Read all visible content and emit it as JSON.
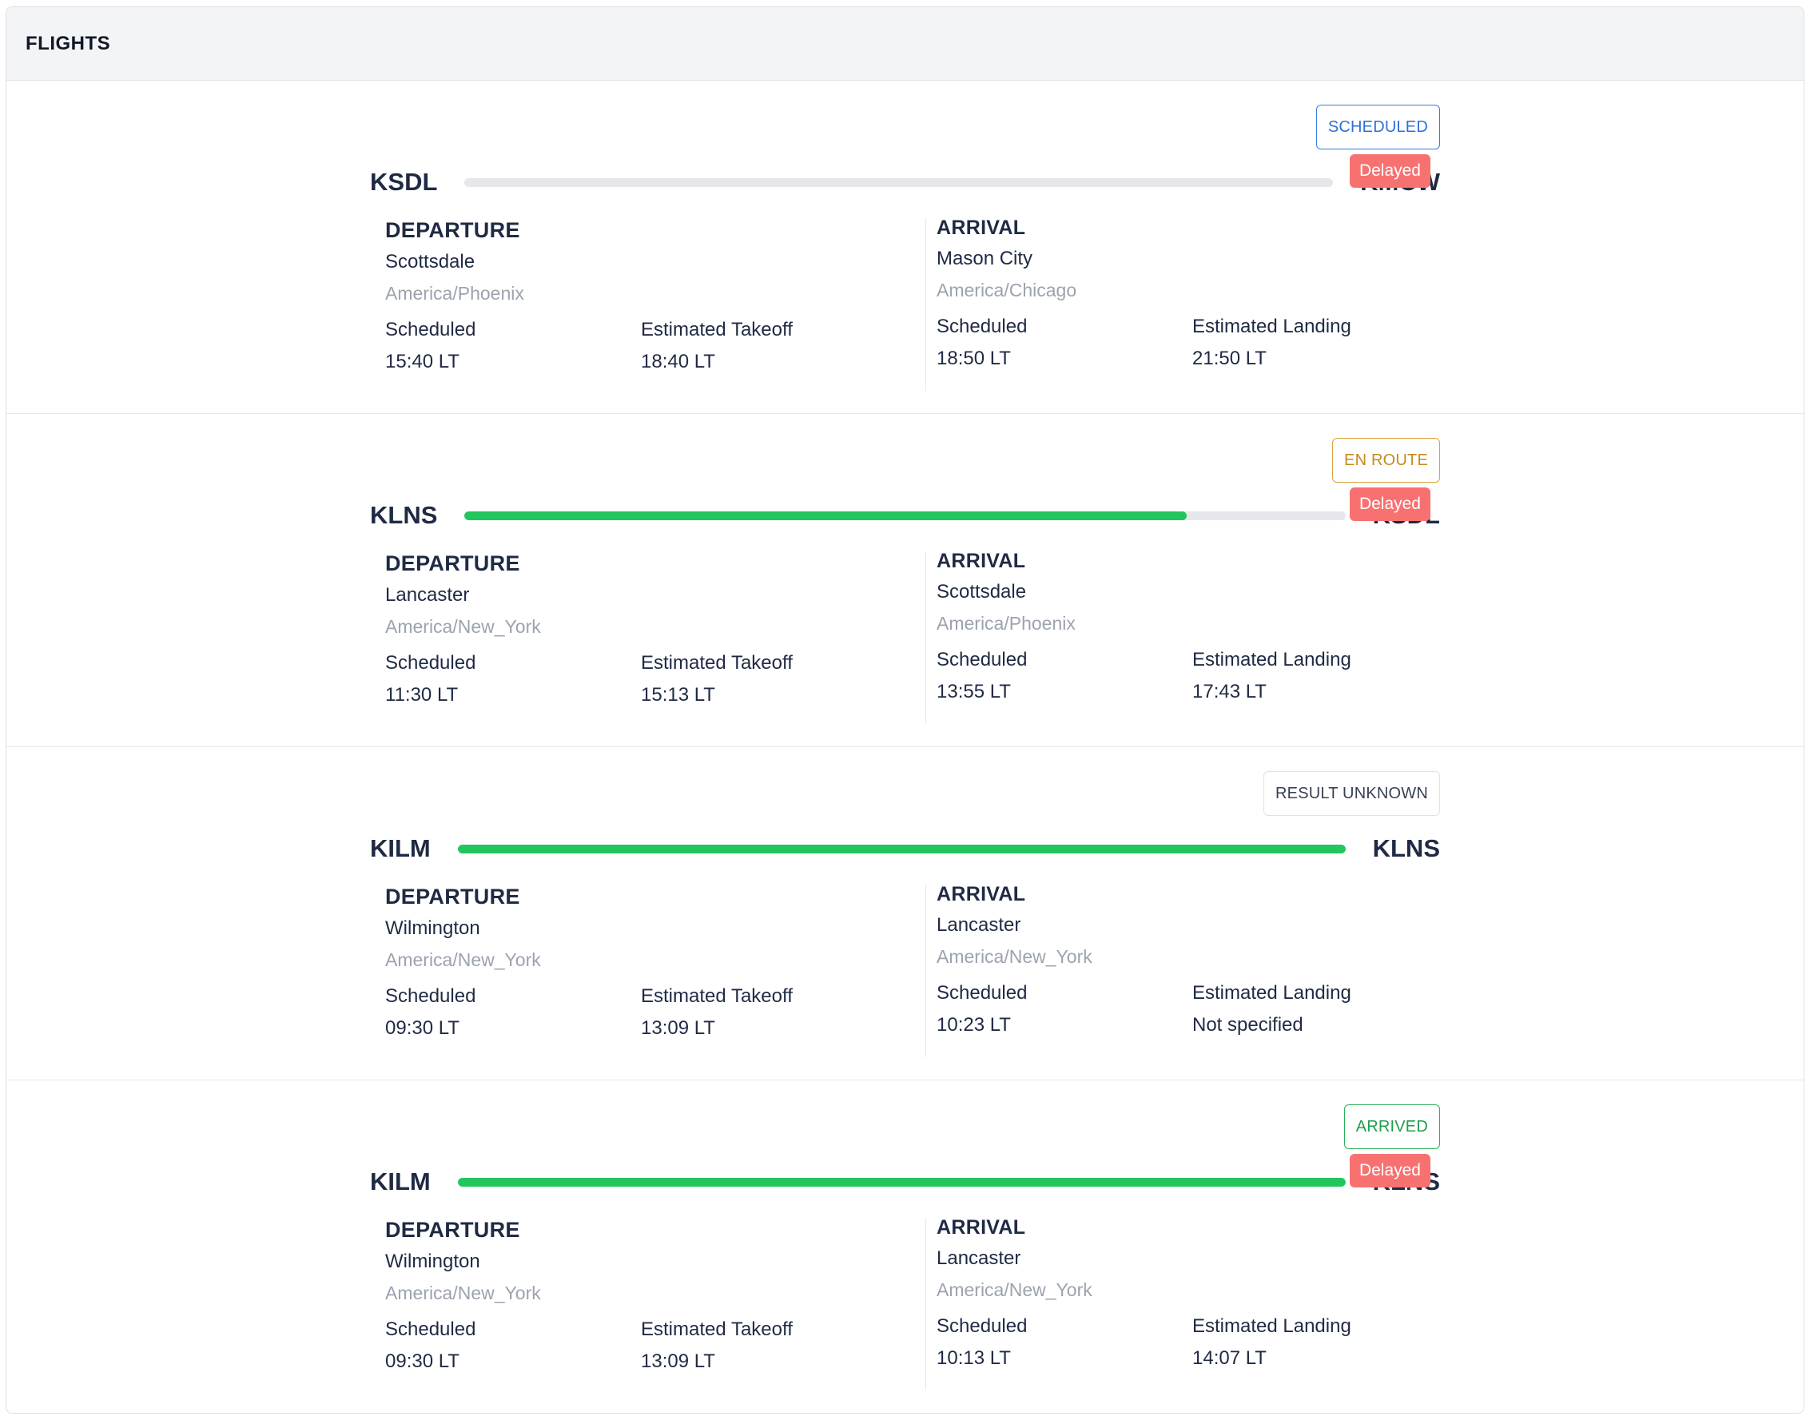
{
  "header": {
    "title": "FLIGHTS"
  },
  "labels": {
    "departure": "DEPARTURE",
    "arrival": "ARRIVAL",
    "scheduled": "Scheduled",
    "estimated_takeoff": "Estimated Takeoff",
    "estimated_landing": "Estimated Landing"
  },
  "flights": [
    {
      "status": "SCHEDULED",
      "status_color": "#2f6fd8",
      "progress": 0,
      "departure": {
        "code": "KSDL",
        "city": "Scottsdale",
        "tz": "America/Phoenix",
        "scheduled": "15:40 LT",
        "estimated": "18:40 LT"
      },
      "arrival": {
        "code": "KMCW",
        "city": "Mason City",
        "tz": "America/Chicago",
        "scheduled": "18:50 LT",
        "estimated": "21:50 LT",
        "badge": "Delayed"
      }
    },
    {
      "status": "EN ROUTE",
      "status_color": "#c58a1c",
      "progress": 0.82,
      "departure": {
        "code": "KLNS",
        "city": "Lancaster",
        "tz": "America/New_York",
        "scheduled": "11:30 LT",
        "estimated": "15:13 LT"
      },
      "arrival": {
        "code": "KSDL",
        "city": "Scottsdale",
        "tz": "America/Phoenix",
        "scheduled": "13:55 LT",
        "estimated": "17:43 LT",
        "badge": "Delayed"
      }
    },
    {
      "status": "RESULT UNKNOWN",
      "status_color": "#374151",
      "progress": 1,
      "departure": {
        "code": "KILM",
        "city": "Wilmington",
        "tz": "America/New_York",
        "scheduled": "09:30 LT",
        "estimated": "13:09 LT"
      },
      "arrival": {
        "code": "KLNS",
        "city": "Lancaster",
        "tz": "America/New_York",
        "scheduled": "10:23 LT",
        "estimated": "Not specified"
      }
    },
    {
      "status": "ARRIVED",
      "status_color": "#1e9e4c",
      "progress": 1,
      "departure": {
        "code": "KILM",
        "city": "Wilmington",
        "tz": "America/New_York",
        "scheduled": "09:30 LT",
        "estimated": "13:09 LT"
      },
      "arrival": {
        "code": "KLNS",
        "city": "Lancaster",
        "tz": "America/New_York",
        "scheduled": "10:13 LT",
        "estimated": "14:07 LT",
        "badge": "Delayed"
      }
    }
  ],
  "colors": {
    "progress_fill": "#22c55e",
    "progress_track": "#e5e7eb",
    "delay_badge": "#f87171"
  }
}
